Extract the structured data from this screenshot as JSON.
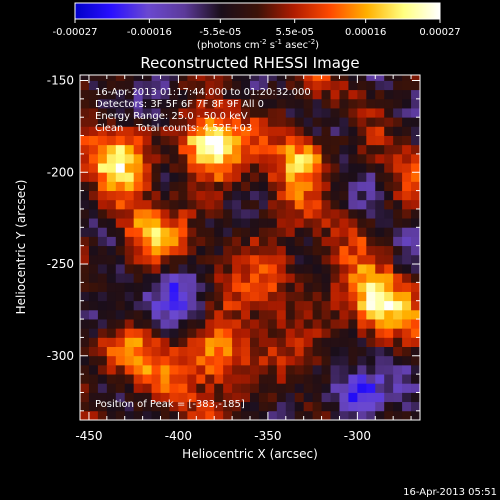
{
  "chart_data": {
    "type": "heatmap",
    "title": "Reconstructed RHESSI Image",
    "xlabel": "Heliocentric X (arcsec)",
    "ylabel": "Heliocentric Y (arcsec)",
    "xlim": [
      -455,
      -265
    ],
    "ylim": [
      -335,
      -147
    ],
    "xticks": [
      -450,
      -400,
      -350,
      -300
    ],
    "yticks": [
      -150,
      -200,
      -250,
      -300
    ],
    "colorbar": {
      "ticks": [
        "-0.00027",
        "-0.00016",
        "-5.5e-05",
        "5.5e-05",
        "0.00016",
        "0.00027"
      ],
      "tick_values": [
        -0.00027,
        -0.00016,
        -5.5e-05,
        5.5e-05,
        0.00016,
        0.00027
      ],
      "range": [
        -0.00027,
        0.00027
      ],
      "units_prefix": "(photons cm",
      "units_sup1": "-2",
      "units_mid1": " s",
      "units_sup2": "-1",
      "units_mid2": " asec",
      "units_sup3": "-2",
      "units_suffix": ")"
    },
    "annotations": [
      "16-Apr-2013 01:17:44.000 to 01:20:32.000",
      "Detectors: 3F 5F 6F 7F 8F 9F All 0",
      "Energy Range: 25.0 - 50.0 keV",
      "Clean    Total counts: 4.52E+03"
    ],
    "peak_label": "Position of Peak = [-383,-185]",
    "peak": [
      -383,
      -185
    ],
    "bright_sources": [
      {
        "x": -383,
        "y": -185,
        "value": 0.00027
      },
      {
        "x": -292,
        "y": -272,
        "value": 0.00025
      },
      {
        "x": -330,
        "y": -190,
        "value": 0.0002
      },
      {
        "x": -432,
        "y": -190,
        "value": 0.00019
      },
      {
        "x": -380,
        "y": -300,
        "value": 0.00022
      },
      {
        "x": -432,
        "y": -300,
        "value": 0.00016
      },
      {
        "x": -420,
        "y": -235,
        "value": 0.00014
      },
      {
        "x": -350,
        "y": -255,
        "value": 0.00012
      },
      {
        "x": -300,
        "y": -320,
        "value": -0.00026
      },
      {
        "x": -440,
        "y": -275,
        "value": -0.00018
      },
      {
        "x": -395,
        "y": -265,
        "value": -0.00016
      },
      {
        "x": -410,
        "y": -160,
        "value": -0.00012
      },
      {
        "x": -305,
        "y": -175,
        "value": -0.0001
      }
    ],
    "grid": false
  },
  "footer": {
    "timestamp": "16-Apr-2013 05:51"
  },
  "colors": {
    "background": "#000000",
    "text": "#ffffff",
    "colormap": [
      "#0000c8",
      "#2a10ff",
      "#6a48d0",
      "#5c3a9a",
      "#1a0e1a",
      "#3c1208",
      "#b01c00",
      "#ff4a00",
      "#ffb000",
      "#ffff80",
      "#ffffff"
    ]
  }
}
